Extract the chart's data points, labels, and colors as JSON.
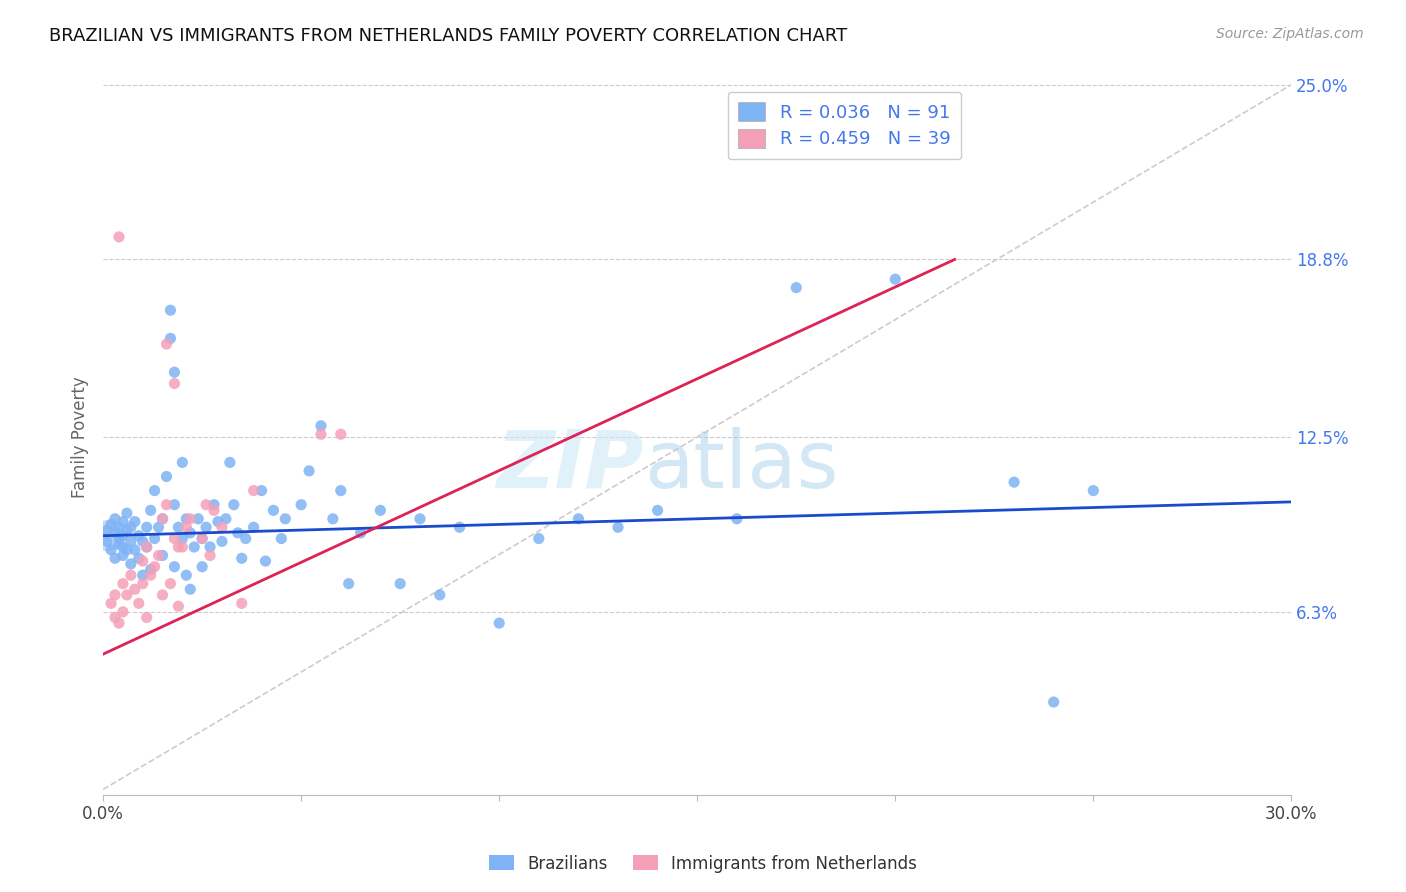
{
  "title": "BRAZILIAN VS IMMIGRANTS FROM NETHERLANDS FAMILY POVERTY CORRELATION CHART",
  "source": "Source: ZipAtlas.com",
  "ylabel": "Family Poverty",
  "x_min": 0.0,
  "x_max": 0.3,
  "y_min": 0.0,
  "y_max": 0.25,
  "x_ticks": [
    0.0,
    0.05,
    0.1,
    0.15,
    0.2,
    0.25,
    0.3
  ],
  "x_tick_labels": [
    "0.0%",
    "",
    "",
    "",
    "",
    "",
    "30.0%"
  ],
  "y_tick_labels_right": [
    "25.0%",
    "18.8%",
    "12.5%",
    "6.3%"
  ],
  "y_tick_positions_right": [
    0.25,
    0.188,
    0.125,
    0.063
  ],
  "blue_color": "#7fb3f5",
  "pink_color": "#f5a0b8",
  "legend_label_blue": "Brazilians",
  "legend_label_pink": "Immigrants from Netherlands",
  "blue_line_color": "#1a4bcc",
  "pink_line_color": "#dd2255",
  "diag_line_color": "#cccccc",
  "blue_line_x": [
    0.0,
    0.3
  ],
  "blue_line_y": [
    0.09,
    0.102
  ],
  "pink_line_x": [
    0.0,
    0.215
  ],
  "pink_line_y": [
    0.048,
    0.188
  ],
  "blue_scatter": [
    [
      0.001,
      0.092
    ],
    [
      0.001,
      0.088
    ],
    [
      0.002,
      0.094
    ],
    [
      0.002,
      0.085
    ],
    [
      0.003,
      0.091
    ],
    [
      0.003,
      0.082
    ],
    [
      0.003,
      0.096
    ],
    [
      0.004,
      0.089
    ],
    [
      0.004,
      0.087
    ],
    [
      0.004,
      0.093
    ],
    [
      0.005,
      0.095
    ],
    [
      0.005,
      0.083
    ],
    [
      0.005,
      0.09
    ],
    [
      0.005,
      0.086
    ],
    [
      0.006,
      0.098
    ],
    [
      0.006,
      0.092
    ],
    [
      0.006,
      0.085
    ],
    [
      0.007,
      0.093
    ],
    [
      0.007,
      0.088
    ],
    [
      0.007,
      0.08
    ],
    [
      0.008,
      0.095
    ],
    [
      0.008,
      0.085
    ],
    [
      0.009,
      0.09
    ],
    [
      0.009,
      0.082
    ],
    [
      0.01,
      0.088
    ],
    [
      0.01,
      0.076
    ],
    [
      0.011,
      0.093
    ],
    [
      0.011,
      0.086
    ],
    [
      0.012,
      0.078
    ],
    [
      0.012,
      0.099
    ],
    [
      0.013,
      0.106
    ],
    [
      0.013,
      0.089
    ],
    [
      0.014,
      0.093
    ],
    [
      0.015,
      0.096
    ],
    [
      0.015,
      0.083
    ],
    [
      0.016,
      0.111
    ],
    [
      0.017,
      0.17
    ],
    [
      0.017,
      0.16
    ],
    [
      0.018,
      0.148
    ],
    [
      0.018,
      0.101
    ],
    [
      0.018,
      0.079
    ],
    [
      0.019,
      0.093
    ],
    [
      0.02,
      0.116
    ],
    [
      0.02,
      0.089
    ],
    [
      0.021,
      0.096
    ],
    [
      0.021,
      0.076
    ],
    [
      0.022,
      0.091
    ],
    [
      0.022,
      0.071
    ],
    [
      0.023,
      0.086
    ],
    [
      0.024,
      0.096
    ],
    [
      0.025,
      0.089
    ],
    [
      0.025,
      0.079
    ],
    [
      0.026,
      0.093
    ],
    [
      0.027,
      0.086
    ],
    [
      0.028,
      0.101
    ],
    [
      0.029,
      0.095
    ],
    [
      0.03,
      0.088
    ],
    [
      0.031,
      0.096
    ],
    [
      0.032,
      0.116
    ],
    [
      0.033,
      0.101
    ],
    [
      0.034,
      0.091
    ],
    [
      0.035,
      0.082
    ],
    [
      0.036,
      0.089
    ],
    [
      0.038,
      0.093
    ],
    [
      0.04,
      0.106
    ],
    [
      0.041,
      0.081
    ],
    [
      0.043,
      0.099
    ],
    [
      0.045,
      0.089
    ],
    [
      0.046,
      0.096
    ],
    [
      0.05,
      0.101
    ],
    [
      0.052,
      0.113
    ],
    [
      0.055,
      0.129
    ],
    [
      0.058,
      0.096
    ],
    [
      0.06,
      0.106
    ],
    [
      0.062,
      0.073
    ],
    [
      0.065,
      0.091
    ],
    [
      0.07,
      0.099
    ],
    [
      0.075,
      0.073
    ],
    [
      0.08,
      0.096
    ],
    [
      0.085,
      0.069
    ],
    [
      0.09,
      0.093
    ],
    [
      0.1,
      0.059
    ],
    [
      0.11,
      0.089
    ],
    [
      0.12,
      0.096
    ],
    [
      0.13,
      0.093
    ],
    [
      0.14,
      0.099
    ],
    [
      0.16,
      0.096
    ],
    [
      0.175,
      0.178
    ],
    [
      0.2,
      0.181
    ],
    [
      0.23,
      0.109
    ],
    [
      0.24,
      0.031
    ],
    [
      0.25,
      0.106
    ]
  ],
  "blue_large_point": [
    0.001,
    0.09
  ],
  "pink_scatter": [
    [
      0.002,
      0.066
    ],
    [
      0.003,
      0.061
    ],
    [
      0.003,
      0.069
    ],
    [
      0.004,
      0.059
    ],
    [
      0.005,
      0.073
    ],
    [
      0.005,
      0.063
    ],
    [
      0.006,
      0.069
    ],
    [
      0.007,
      0.076
    ],
    [
      0.008,
      0.071
    ],
    [
      0.009,
      0.066
    ],
    [
      0.01,
      0.081
    ],
    [
      0.01,
      0.073
    ],
    [
      0.011,
      0.086
    ],
    [
      0.011,
      0.061
    ],
    [
      0.012,
      0.076
    ],
    [
      0.013,
      0.079
    ],
    [
      0.014,
      0.083
    ],
    [
      0.015,
      0.096
    ],
    [
      0.015,
      0.069
    ],
    [
      0.016,
      0.101
    ],
    [
      0.017,
      0.073
    ],
    [
      0.018,
      0.089
    ],
    [
      0.019,
      0.086
    ],
    [
      0.019,
      0.065
    ],
    [
      0.02,
      0.086
    ],
    [
      0.021,
      0.093
    ],
    [
      0.022,
      0.096
    ],
    [
      0.025,
      0.089
    ],
    [
      0.026,
      0.101
    ],
    [
      0.027,
      0.083
    ],
    [
      0.028,
      0.099
    ],
    [
      0.03,
      0.093
    ],
    [
      0.035,
      0.066
    ],
    [
      0.038,
      0.106
    ],
    [
      0.004,
      0.196
    ],
    [
      0.016,
      0.158
    ],
    [
      0.018,
      0.144
    ],
    [
      0.055,
      0.126
    ],
    [
      0.06,
      0.126
    ]
  ]
}
